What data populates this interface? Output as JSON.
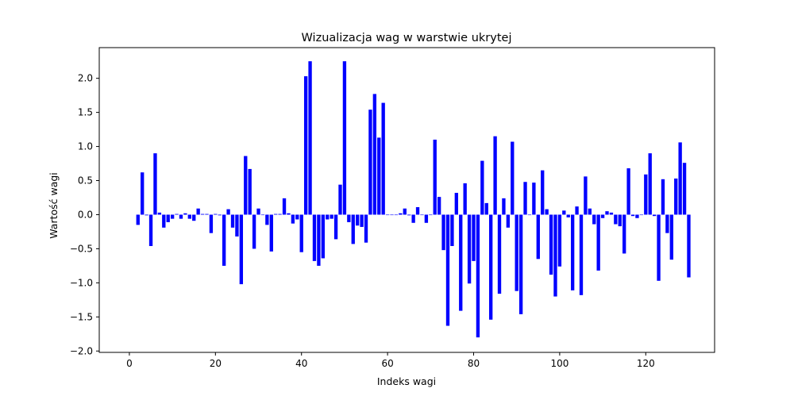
{
  "chart_data": {
    "type": "bar",
    "title": "Wizualizacja wag w warstwie ukrytej",
    "xlabel": "Indeks wagi",
    "ylabel": "Wartość wagi",
    "xlim": [
      -7,
      136
    ],
    "ylim": [
      -2.02,
      2.45
    ],
    "xticks": [
      0,
      20,
      40,
      60,
      80,
      100,
      120
    ],
    "yticks": [
      -2.0,
      -1.5,
      -1.0,
      -0.5,
      0.0,
      0.5,
      1.0,
      1.5,
      2.0
    ],
    "ytick_labels": [
      "−2.0",
      "−1.5",
      "−1.0",
      "−0.5",
      "0.0",
      "0.5",
      "1.0",
      "1.5",
      "2.0"
    ],
    "grid": false,
    "bar_color": "#0000ff",
    "x_start": 2,
    "values": [
      -0.15,
      0.62,
      -0.01,
      -0.46,
      0.9,
      0.03,
      -0.19,
      -0.11,
      -0.06,
      0.01,
      -0.06,
      0.02,
      -0.06,
      -0.09,
      0.09,
      0.01,
      0.01,
      -0.27,
      0.01,
      -0.01,
      -0.75,
      0.08,
      -0.19,
      -0.32,
      -1.02,
      0.86,
      0.67,
      -0.5,
      0.09,
      0.0,
      -0.15,
      -0.54,
      0.01,
      0.01,
      0.24,
      0.02,
      -0.13,
      -0.07,
      -0.55,
      2.03,
      2.25,
      -0.68,
      -0.75,
      -0.64,
      -0.07,
      -0.06,
      -0.36,
      0.44,
      2.25,
      -0.11,
      -0.43,
      -0.16,
      -0.18,
      -0.41,
      1.54,
      1.77,
      1.13,
      1.64,
      0.0,
      0.0,
      0.0,
      0.02,
      0.09,
      -0.01,
      -0.12,
      0.11,
      0.0,
      -0.12,
      0.0,
      1.1,
      0.26,
      -0.52,
      -1.63,
      -0.46,
      0.32,
      -1.41,
      0.46,
      -1.01,
      -0.68,
      -1.8,
      0.79,
      0.17,
      -1.54,
      1.15,
      -1.16,
      0.24,
      -0.19,
      1.07,
      -1.12,
      -1.46,
      0.48,
      0.0,
      0.47,
      -0.65,
      0.65,
      0.08,
      -0.88,
      -1.2,
      -0.76,
      0.06,
      -0.04,
      -1.11,
      0.12,
      -1.18,
      0.56,
      0.09,
      -0.14,
      -0.82,
      -0.05,
      0.05,
      0.03,
      -0.14,
      -0.17,
      -0.57,
      0.68,
      -0.02,
      -0.05,
      0.0,
      0.59,
      0.9,
      -0.02,
      -0.97,
      0.52,
      -0.27,
      -0.66,
      0.53,
      1.06,
      0.76,
      -0.92
    ]
  }
}
